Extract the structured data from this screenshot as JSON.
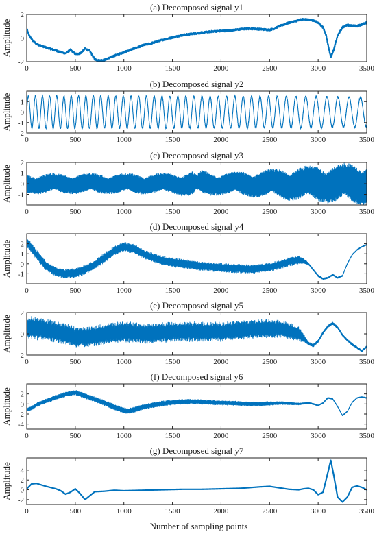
{
  "figure": {
    "xlabel": "Number of sampling points"
  },
  "style": {
    "line_color": "#0072BD"
  },
  "chart_data": [
    {
      "type": "line",
      "title": "(a) Decomposed signal y1",
      "ylabel": "Amplitude",
      "xlim": [
        0,
        3500
      ],
      "ylim": [
        -2,
        2
      ],
      "xticks": [
        0,
        500,
        1000,
        1500,
        2000,
        2500,
        3000,
        3500
      ],
      "yticks": [
        -2,
        0,
        2
      ],
      "series": [
        {
          "x": [
            0,
            20,
            60,
            100,
            200,
            300,
            350,
            400,
            450,
            500,
            550,
            600,
            650,
            700,
            750,
            800,
            900,
            1000,
            1100,
            1200,
            1300,
            1400,
            1500,
            1600,
            1700,
            1800,
            1900,
            2000,
            2100,
            2200,
            2300,
            2400,
            2500,
            2550,
            2600,
            2700,
            2800,
            2850,
            2900,
            2950,
            3000,
            3050,
            3080,
            3100,
            3130,
            3160,
            3200,
            3250,
            3300,
            3350,
            3400,
            3450,
            3500
          ],
          "y": [
            0.8,
            0.3,
            -0.2,
            -0.5,
            -0.8,
            -1.05,
            -1.2,
            -1.3,
            -1.0,
            -1.35,
            -1.3,
            -0.9,
            -1.1,
            -1.8,
            -1.9,
            -1.85,
            -1.5,
            -1.2,
            -0.9,
            -0.6,
            -0.4,
            -0.15,
            0.05,
            0.25,
            0.35,
            0.45,
            0.55,
            0.6,
            0.65,
            0.75,
            0.8,
            0.75,
            0.7,
            0.8,
            1.0,
            1.3,
            1.5,
            1.6,
            1.55,
            1.5,
            1.3,
            0.9,
            0.3,
            -0.5,
            -1.6,
            -1.0,
            0.2,
            0.9,
            1.1,
            1.05,
            1.0,
            1.15,
            1.3
          ],
          "band": 0.15
        }
      ]
    },
    {
      "type": "line",
      "title": "(b) Decomposed signal y2",
      "ylabel": "Amplitude",
      "xlim": [
        0,
        3500
      ],
      "ylim": [
        -2,
        2
      ],
      "xticks": [
        0,
        500,
        1000,
        1500,
        2000,
        2500,
        3000,
        3500
      ],
      "yticks": [
        -2,
        -1,
        0,
        1
      ],
      "series": [
        {
          "waveform": "sine",
          "periods": [
            [
              0,
              72
            ],
            [
              2500,
              88
            ],
            [
              3000,
              110
            ],
            [
              3500,
              120
            ]
          ],
          "amplitude": [
            [
              0,
              1.55
            ],
            [
              3000,
              1.5
            ],
            [
              3500,
              1.4
            ]
          ]
        }
      ]
    },
    {
      "type": "line",
      "title": "(c) Decomposed signal y3",
      "ylabel": "Amplitude",
      "xlim": [
        0,
        3500
      ],
      "ylim": [
        -2,
        2
      ],
      "xticks": [
        0,
        500,
        1000,
        1500,
        2000,
        2500,
        3000,
        3500
      ],
      "yticks": [
        -1,
        0,
        1,
        2
      ],
      "series": [
        {
          "waveform": "dense",
          "envelope": [
            [
              0,
              1.0
            ],
            [
              500,
              1.0
            ],
            [
              1000,
              1.0
            ],
            [
              1500,
              1.05
            ],
            [
              1700,
              1.3
            ],
            [
              1750,
              0.9
            ],
            [
              1800,
              1.3
            ],
            [
              2000,
              1.1
            ],
            [
              2500,
              1.4
            ],
            [
              2700,
              1.6
            ],
            [
              3000,
              1.8
            ],
            [
              3500,
              2.1
            ]
          ]
        }
      ]
    },
    {
      "type": "line",
      "title": "(d) Decomposed signal y4",
      "ylabel": "Amplitude",
      "xlim": [
        0,
        3500
      ],
      "ylim": [
        -2,
        3
      ],
      "xticks": [
        0,
        500,
        1000,
        1500,
        2000,
        2500,
        3000,
        3500
      ],
      "yticks": [
        -1,
        0,
        1,
        2
      ],
      "series": [
        {
          "x": [
            0,
            50,
            100,
            200,
            300,
            400,
            500,
            600,
            700,
            800,
            900,
            1000,
            1100,
            1200,
            1300,
            1400,
            1500,
            1600,
            1700,
            1800,
            1900,
            2000,
            2100,
            2200,
            2300,
            2400,
            2500,
            2600,
            2700,
            2800,
            2850,
            2900,
            2950,
            3000,
            3050,
            3100,
            3150,
            3200,
            3250,
            3300,
            3350,
            3400,
            3450,
            3500
          ],
          "y": [
            2.2,
            1.6,
            0.9,
            -0.2,
            -0.8,
            -1.0,
            -0.9,
            -0.6,
            -0.1,
            0.6,
            1.3,
            1.7,
            1.5,
            1.0,
            0.6,
            0.3,
            0.15,
            0.0,
            -0.1,
            -0.25,
            -0.3,
            -0.4,
            -0.45,
            -0.5,
            -0.55,
            -0.45,
            -0.35,
            -0.1,
            0.2,
            0.4,
            0.3,
            0.0,
            -0.6,
            -1.2,
            -1.5,
            -1.4,
            -1.1,
            -1.4,
            -1.2,
            0.0,
            0.9,
            1.4,
            1.7,
            1.9
          ],
          "band": 0.55,
          "band_profile": [
            [
              0,
              0.5
            ],
            [
              2800,
              0.45
            ],
            [
              2900,
              0.1
            ],
            [
              3500,
              0.05
            ]
          ]
        }
      ]
    },
    {
      "type": "line",
      "title": "(e) Decomposed signal y5",
      "ylabel": "Amplitude",
      "xlim": [
        0,
        3500
      ],
      "ylim": [
        -2,
        2
      ],
      "xticks": [
        0,
        500,
        1000,
        1500,
        2000,
        2500,
        3000,
        3500
      ],
      "yticks": [
        -2,
        0,
        2
      ],
      "series": [
        {
          "x": [
            0,
            100,
            200,
            300,
            400,
            500,
            600,
            700,
            800,
            900,
            1000,
            1100,
            1200,
            1300,
            1400,
            1500,
            1600,
            1700,
            1800,
            1900,
            2000,
            2100,
            2200,
            2300,
            2400,
            2500,
            2600,
            2700,
            2800,
            2850,
            2900,
            2950,
            3000,
            3050,
            3100,
            3150,
            3200,
            3250,
            3300,
            3350,
            3400,
            3450,
            3500
          ],
          "y": [
            0.6,
            0.5,
            0.4,
            0.2,
            0.0,
            -0.3,
            -0.3,
            -0.2,
            0.0,
            0.1,
            0.2,
            0.1,
            0.0,
            0.0,
            0.1,
            0.2,
            0.2,
            0.2,
            0.2,
            0.2,
            0.2,
            0.3,
            0.3,
            0.4,
            0.5,
            0.5,
            0.5,
            0.3,
            0.0,
            -0.4,
            -0.9,
            -1.1,
            -0.7,
            0.1,
            0.7,
            1.0,
            0.6,
            -0.1,
            -0.6,
            -1.0,
            -1.3,
            -1.6,
            -1.2
          ],
          "band": 1.0,
          "band_profile": [
            [
              0,
              1.1
            ],
            [
              500,
              1.0
            ],
            [
              1000,
              1.0
            ],
            [
              2500,
              0.9
            ],
            [
              2800,
              0.7
            ],
            [
              2900,
              0.15
            ],
            [
              3500,
              0.1
            ]
          ]
        }
      ]
    },
    {
      "type": "line",
      "title": "(f) Decomposed signal y6",
      "ylabel": "Amplitude",
      "xlim": [
        0,
        3500
      ],
      "ylim": [
        -5,
        4
      ],
      "xticks": [
        0,
        500,
        1000,
        1500,
        2000,
        2500,
        3000,
        3500
      ],
      "yticks": [
        -4,
        -2,
        0,
        2
      ],
      "series": [
        {
          "x": [
            0,
            50,
            100,
            200,
            300,
            400,
            500,
            600,
            700,
            800,
            900,
            1000,
            1050,
            1100,
            1200,
            1300,
            1400,
            1500,
            1600,
            1700,
            1800,
            1900,
            2000,
            2100,
            2200,
            2300,
            2400,
            2500,
            2600,
            2700,
            2800,
            2900,
            2950,
            3000,
            3050,
            3100,
            3150,
            3200,
            3250,
            3300,
            3350,
            3400,
            3450,
            3500
          ],
          "y": [
            -1.2,
            -0.8,
            -0.2,
            0.6,
            1.3,
            1.9,
            2.3,
            1.6,
            0.9,
            0.2,
            -0.6,
            -1.3,
            -1.4,
            -1.2,
            -0.6,
            -0.2,
            0.1,
            0.3,
            0.4,
            0.5,
            0.4,
            0.3,
            0.2,
            0.2,
            0.1,
            0.0,
            0.0,
            0.1,
            0.2,
            0.1,
            0.0,
            0.2,
            0.0,
            -0.3,
            0.2,
            1.2,
            1.0,
            -0.5,
            -2.3,
            -1.5,
            0.3,
            1.2,
            1.4,
            1.2
          ],
          "band": 0.6,
          "band_profile": [
            [
              0,
              0.4
            ],
            [
              500,
              0.5
            ],
            [
              1000,
              0.6
            ],
            [
              2500,
              0.4
            ],
            [
              2900,
              0.15
            ],
            [
              3500,
              0.1
            ]
          ]
        }
      ]
    },
    {
      "type": "line",
      "title": "(g) Decomposed signal y7",
      "ylabel": "Amplitude",
      "xlim": [
        0,
        3500
      ],
      "ylim": [
        -3,
        6.5
      ],
      "xticks": [
        0,
        500,
        1000,
        1500,
        2000,
        2500,
        3000,
        3500
      ],
      "yticks": [
        -2,
        0,
        2,
        4
      ],
      "series": [
        {
          "x": [
            0,
            50,
            100,
            200,
            300,
            350,
            400,
            450,
            500,
            550,
            600,
            650,
            700,
            800,
            900,
            1000,
            1200,
            1400,
            1600,
            1800,
            2000,
            2200,
            2400,
            2500,
            2600,
            2700,
            2800,
            2850,
            2900,
            2950,
            3000,
            3050,
            3100,
            3130,
            3160,
            3200,
            3250,
            3300,
            3350,
            3400,
            3450,
            3500
          ],
          "y": [
            0.2,
            1.2,
            1.3,
            0.7,
            0.2,
            -0.2,
            -0.9,
            -0.5,
            0.2,
            -0.8,
            -2.0,
            -1.2,
            -0.4,
            -0.3,
            -0.1,
            -0.2,
            -0.1,
            0.0,
            0.1,
            0.1,
            0.2,
            0.3,
            0.6,
            0.7,
            0.4,
            0.1,
            0.0,
            0.2,
            0.3,
            0.0,
            -1.0,
            -0.5,
            3.5,
            6.0,
            3.0,
            -1.5,
            -2.5,
            -1.5,
            0.5,
            0.8,
            0.5,
            0.0
          ]
        }
      ]
    }
  ]
}
